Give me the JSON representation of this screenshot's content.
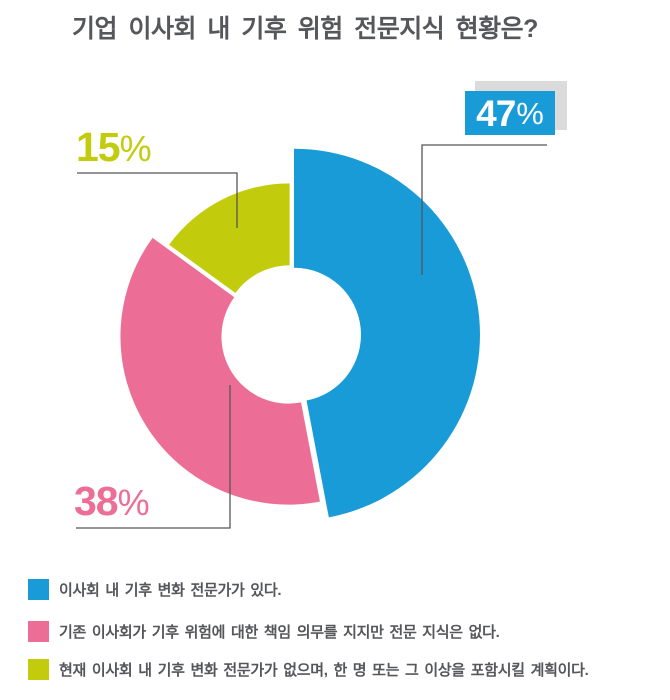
{
  "title": "기업 이사회 내 기후 위험 전문지식 현황은?",
  "chart_data": {
    "type": "pie",
    "subtype": "donut",
    "unit": "%",
    "direction": "clockwise",
    "start_angle_deg": 0,
    "legend_position": "bottom",
    "title": "기업 이사회 내 기후 위험 전문지식 현황은?",
    "series": [
      {
        "label": "이사회 내 기후 변화 전문가가 있다.",
        "value": 47,
        "color": "#189BD7"
      },
      {
        "label": "기존 이사회가 기후 위험에 대한 책임 의무를 지지만 전문 지식은 없다.",
        "value": 38,
        "color": "#EC6E96"
      },
      {
        "label": "현재 이사회 내 기후 변화 전문가가 없으며, 한 명 또는 그 이상을 포함시킬 계획이다.",
        "value": 15,
        "color": "#C3CC0C"
      }
    ]
  },
  "labels": {
    "percent_suffix": "%"
  },
  "colors": {
    "background": "#FFFFFF",
    "title_text": "#56575B",
    "legend_text": "#56575B",
    "connector_line": "#55565A",
    "badge_text": "#FFFFFF",
    "badge_shadow": "#DBDBDB"
  }
}
